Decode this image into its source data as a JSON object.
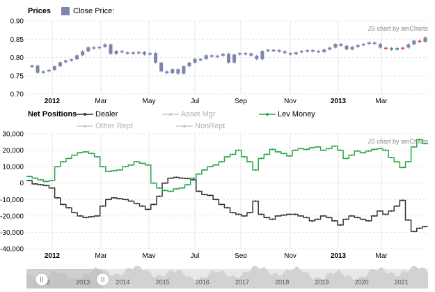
{
  "chart_data": [
    {
      "type": "candlestick",
      "legend_title": "Prices",
      "legend": [
        {
          "name": "Close Price:",
          "color": "#7b86a8"
        }
      ],
      "watermark": "JS chart by amCharts",
      "yticks": [
        "0.90",
        "0.85",
        "0.80",
        "0.75",
        "0.70"
      ],
      "ylim": [
        0.7,
        0.9
      ],
      "xticks": [
        {
          "label": "2012",
          "bold": true
        },
        {
          "label": "Mar",
          "bold": false
        },
        {
          "label": "May",
          "bold": false
        },
        {
          "label": "Jul",
          "bold": false
        },
        {
          "label": "Sep",
          "bold": false
        },
        {
          "label": "Nov",
          "bold": false
        },
        {
          "label": "2013",
          "bold": true
        },
        {
          "label": "Mar",
          "bold": false
        }
      ],
      "close": [
        0.778,
        0.758,
        0.762,
        0.766,
        0.776,
        0.787,
        0.792,
        0.795,
        0.806,
        0.817,
        0.828,
        0.826,
        0.829,
        0.836,
        0.81,
        0.818,
        0.814,
        0.812,
        0.814,
        0.815,
        0.808,
        0.812,
        0.786,
        0.762,
        0.757,
        0.768,
        0.756,
        0.776,
        0.786,
        0.796,
        0.796,
        0.806,
        0.802,
        0.805,
        0.81,
        0.786,
        0.808,
        0.812,
        0.811,
        0.805,
        0.795,
        0.818,
        0.821,
        0.82,
        0.817,
        0.812,
        0.809,
        0.814,
        0.818,
        0.82,
        0.818,
        0.815,
        0.822,
        0.827,
        0.837,
        0.832,
        0.822,
        0.829,
        0.834,
        0.837,
        0.841,
        0.837,
        0.827,
        0.826,
        0.821,
        0.826,
        0.827,
        0.836,
        0.846,
        0.843,
        0.855
      ],
      "bear_color": "#d9534f",
      "bull_color": "#7b86a8"
    },
    {
      "type": "step-line",
      "legend_title": "Net Positions",
      "watermark": "JS chart by amCharts",
      "yticks": [
        "30,000",
        "20,000",
        "10,000",
        "0",
        "-10,000",
        "-20,000",
        "-30,000",
        "-40,000"
      ],
      "ylim": [
        -40000,
        30000
      ],
      "xticks": [
        {
          "label": "2012",
          "bold": true
        },
        {
          "label": "Mar",
          "bold": false
        },
        {
          "label": "May",
          "bold": false
        },
        {
          "label": "Jul",
          "bold": false
        },
        {
          "label": "Sep",
          "bold": false
        },
        {
          "label": "Nov",
          "bold": false
        },
        {
          "label": "2013",
          "bold": true
        },
        {
          "label": "Mar",
          "bold": false
        }
      ],
      "series": [
        {
          "name": "Dealer",
          "color": "#333333",
          "enabled": true,
          "values": [
            1500,
            -500,
            -1000,
            -1500,
            -3000,
            -9000,
            -13000,
            -15000,
            -18000,
            -20000,
            -21000,
            -20500,
            -20000,
            -14000,
            -10000,
            -9000,
            -9500,
            -10000,
            -11000,
            -12500,
            -14000,
            -16000,
            -13000,
            -8000,
            0,
            3000,
            3500,
            3000,
            2800,
            2000,
            -5000,
            -7000,
            -7500,
            -10000,
            -13000,
            -15000,
            -18000,
            -19000,
            -20000,
            -18000,
            -11000,
            -19000,
            -21000,
            -22000,
            -20000,
            -19500,
            -19000,
            -19000,
            -20000,
            -21000,
            -23000,
            -22000,
            -20000,
            -21000,
            -23000,
            -25500,
            -22000,
            -20000,
            -21000,
            -22000,
            -23000,
            -20000,
            -17000,
            -19000,
            -17000,
            -14000,
            -10500,
            -22500,
            -29500,
            -27500,
            -26500
          ]
        },
        {
          "name": "Asset Mgr",
          "color": "#c8c8c8",
          "enabled": false,
          "values": []
        },
        {
          "name": "Lev Money",
          "color": "#27a64a",
          "enabled": true,
          "values": [
            4000,
            3000,
            2000,
            1000,
            1500,
            10000,
            13000,
            15000,
            17000,
            18500,
            19000,
            18000,
            16000,
            10000,
            7000,
            7500,
            8000,
            10000,
            11000,
            13000,
            12000,
            11000,
            0,
            -3000,
            -4500,
            -5000,
            -3500,
            -3000,
            -1000,
            3000,
            5500,
            8000,
            10000,
            11000,
            13000,
            16000,
            17500,
            20000,
            16000,
            13000,
            8000,
            15000,
            17500,
            20500,
            19000,
            18000,
            16500,
            20000,
            21000,
            20500,
            21500,
            22000,
            20000,
            21000,
            22500,
            20000,
            15000,
            17000,
            19500,
            18500,
            19500,
            20500,
            21000,
            20000,
            15500,
            13000,
            9500,
            13000,
            22000,
            26500,
            24000
          ]
        },
        {
          "name": "Other Rept",
          "color": "#c8c8c8",
          "enabled": false,
          "values": []
        },
        {
          "name": "NonRept",
          "color": "#c8c8c8",
          "enabled": false,
          "values": []
        }
      ]
    }
  ],
  "scrollbar": {
    "years": [
      "2012",
      "2013",
      "2014",
      "2015",
      "2016",
      "2017",
      "2018",
      "2019",
      "2020",
      "2021"
    ],
    "selection_start": 0.0,
    "selection_end": 0.19
  }
}
